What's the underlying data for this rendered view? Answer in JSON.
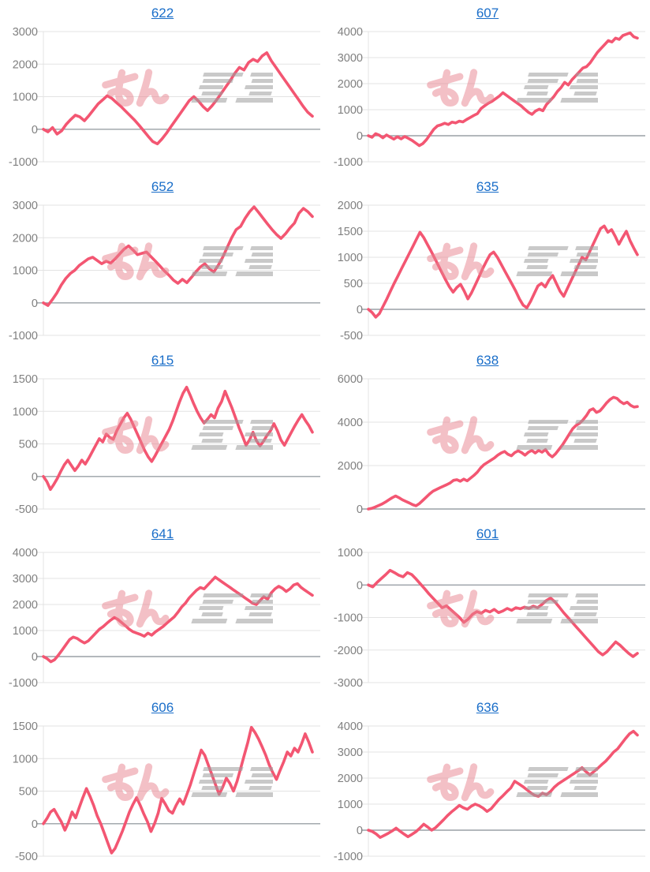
{
  "page": {
    "background": "#ffffff"
  },
  "style": {
    "series_color": "#f35672",
    "grid_color": "#e3e3e3",
    "zero_line_color": "#9aa0a6",
    "tick_label_color": "#808080",
    "title_link_color": "#1a6ec9",
    "watermark_pink": "#e9828e",
    "watermark_gray": "#9e9e9e"
  },
  "watermark": {
    "text": "みんレポ",
    "text_pink": "みん",
    "text_gray": "レポ"
  },
  "chart_data": [
    {
      "type": "line",
      "title": "622",
      "legend": "none",
      "grid": true,
      "y_ticks": [
        3000,
        2000,
        1000,
        0,
        -1000
      ],
      "ylim": [
        -1000,
        3000
      ],
      "values": [
        0,
        -80,
        50,
        -150,
        -50,
        150,
        300,
        430,
        380,
        260,
        420,
        600,
        780,
        900,
        1030,
        950,
        820,
        700,
        560,
        420,
        280,
        120,
        -50,
        -220,
        -380,
        -450,
        -300,
        -120,
        80,
        280,
        480,
        680,
        880,
        1000,
        870,
        700,
        570,
        720,
        900,
        1100,
        1300,
        1500,
        1720,
        1900,
        1820,
        2050,
        2150,
        2080,
        2250,
        2350,
        2100,
        1900,
        1700,
        1500,
        1300,
        1100,
        900,
        700,
        520,
        400
      ]
    },
    {
      "type": "line",
      "title": "607",
      "legend": "none",
      "grid": true,
      "y_ticks": [
        4000,
        3000,
        2000,
        1000,
        0,
        -1000
      ],
      "ylim": [
        -1000,
        4000
      ],
      "values": [
        0,
        -60,
        80,
        20,
        -80,
        30,
        -50,
        -130,
        -40,
        -120,
        -30,
        -100,
        -180,
        -280,
        -380,
        -300,
        -150,
        50,
        250,
        380,
        420,
        480,
        430,
        520,
        490,
        560,
        530,
        620,
        700,
        780,
        850,
        1050,
        1150,
        1250,
        1320,
        1420,
        1520,
        1650,
        1550,
        1450,
        1350,
        1250,
        1150,
        1020,
        900,
        820,
        950,
        1020,
        960,
        1200,
        1350,
        1500,
        1700,
        1850,
        2050,
        1950,
        2150,
        2300,
        2450,
        2600,
        2650,
        2800,
        3000,
        3200,
        3350,
        3500,
        3650,
        3600,
        3750,
        3700,
        3850,
        3900,
        3950,
        3800,
        3750
      ]
    },
    {
      "type": "line",
      "title": "652",
      "legend": "none",
      "grid": true,
      "y_ticks": [
        3000,
        2000,
        1000,
        0,
        -1000
      ],
      "ylim": [
        -1000,
        3000
      ],
      "values": [
        0,
        -80,
        100,
        300,
        550,
        750,
        900,
        1000,
        1150,
        1250,
        1350,
        1400,
        1300,
        1200,
        1280,
        1220,
        1350,
        1500,
        1650,
        1750,
        1620,
        1480,
        1520,
        1560,
        1420,
        1280,
        1130,
        980,
        850,
        700,
        600,
        720,
        620,
        780,
        950,
        1100,
        1200,
        1050,
        950,
        1150,
        1400,
        1700,
        2000,
        2250,
        2350,
        2600,
        2800,
        2950,
        2780,
        2600,
        2420,
        2250,
        2100,
        1980,
        2120,
        2300,
        2450,
        2750,
        2900,
        2800,
        2650
      ]
    },
    {
      "type": "line",
      "title": "635",
      "legend": "none",
      "grid": true,
      "y_ticks": [
        2000,
        1500,
        1000,
        500,
        0,
        -500
      ],
      "ylim": [
        -500,
        2000
      ],
      "values": [
        0,
        -60,
        -150,
        -80,
        60,
        200,
        350,
        500,
        640,
        780,
        920,
        1060,
        1200,
        1340,
        1480,
        1380,
        1250,
        1120,
        980,
        840,
        700,
        560,
        430,
        330,
        420,
        480,
        350,
        200,
        320,
        470,
        620,
        780,
        920,
        1050,
        1100,
        1000,
        870,
        740,
        610,
        480,
        350,
        200,
        80,
        30,
        150,
        300,
        450,
        500,
        430,
        560,
        650,
        500,
        350,
        250,
        400,
        550,
        700,
        850,
        1000,
        950,
        1100,
        1250,
        1400,
        1550,
        1600,
        1480,
        1530,
        1400,
        1250,
        1380,
        1500,
        1320,
        1180,
        1050
      ]
    },
    {
      "type": "line",
      "title": "615",
      "legend": "none",
      "grid": true,
      "y_ticks": [
        1500,
        1000,
        500,
        0,
        -500
      ],
      "ylim": [
        -500,
        1500
      ],
      "values": [
        0,
        -80,
        -200,
        -120,
        -30,
        80,
        180,
        250,
        170,
        90,
        160,
        250,
        190,
        280,
        380,
        480,
        580,
        530,
        650,
        600,
        570,
        700,
        800,
        900,
        970,
        880,
        760,
        640,
        520,
        400,
        300,
        230,
        320,
        420,
        520,
        620,
        720,
        850,
        1000,
        1150,
        1280,
        1370,
        1250,
        1120,
        1000,
        900,
        820,
        880,
        950,
        900,
        1050,
        1150,
        1310,
        1180,
        1050,
        900,
        750,
        620,
        480,
        560,
        680,
        550,
        470,
        540,
        630,
        700,
        810,
        700,
        560,
        480,
        580,
        680,
        780,
        870,
        950,
        860,
        780,
        680
      ]
    },
    {
      "type": "line",
      "title": "638",
      "legend": "none",
      "grid": true,
      "y_ticks": [
        6000,
        4000,
        2000,
        0
      ],
      "ylim": [
        0,
        6000
      ],
      "values": [
        0,
        30,
        90,
        160,
        230,
        320,
        420,
        520,
        600,
        520,
        420,
        350,
        280,
        200,
        150,
        250,
        400,
        550,
        700,
        820,
        900,
        980,
        1050,
        1120,
        1200,
        1320,
        1350,
        1280,
        1380,
        1300,
        1420,
        1550,
        1700,
        1900,
        2050,
        2150,
        2250,
        2350,
        2480,
        2580,
        2650,
        2520,
        2450,
        2600,
        2680,
        2600,
        2480,
        2620,
        2700,
        2580,
        2700,
        2620,
        2740,
        2520,
        2400,
        2550,
        2750,
        2950,
        3200,
        3450,
        3700,
        3850,
        3950,
        4100,
        4300,
        4550,
        4620,
        4450,
        4520,
        4700,
        4900,
        5050,
        5150,
        5100,
        4950,
        4850,
        4920,
        4780,
        4700,
        4720
      ]
    },
    {
      "type": "line",
      "title": "641",
      "legend": "none",
      "grid": true,
      "y_ticks": [
        4000,
        3000,
        2000,
        1000,
        0,
        -1000
      ],
      "ylim": [
        -1000,
        4000
      ],
      "values": [
        0,
        -80,
        -200,
        -120,
        50,
        250,
        450,
        650,
        750,
        700,
        600,
        520,
        600,
        750,
        900,
        1050,
        1150,
        1280,
        1400,
        1500,
        1420,
        1300,
        1180,
        1050,
        950,
        900,
        850,
        780,
        900,
        820,
        950,
        1050,
        1150,
        1280,
        1400,
        1520,
        1700,
        1900,
        2050,
        2250,
        2400,
        2550,
        2650,
        2600,
        2750,
        2900,
        3050,
        2950,
        2850,
        2750,
        2650,
        2550,
        2450,
        2350,
        2250,
        2150,
        2050,
        2000,
        2150,
        2300,
        2200,
        2450,
        2600,
        2700,
        2620,
        2500,
        2600,
        2750,
        2800,
        2650,
        2550,
        2450,
        2350
      ]
    },
    {
      "type": "line",
      "title": "601",
      "legend": "none",
      "grid": true,
      "y_ticks": [
        1000,
        0,
        -1000,
        -2000,
        -3000
      ],
      "ylim": [
        -3000,
        1000
      ],
      "values": [
        0,
        -60,
        80,
        200,
        320,
        450,
        380,
        300,
        250,
        380,
        320,
        180,
        30,
        -120,
        -280,
        -420,
        -560,
        -700,
        -640,
        -760,
        -880,
        -1000,
        -1150,
        -1050,
        -900,
        -820,
        -870,
        -780,
        -830,
        -750,
        -850,
        -800,
        -720,
        -780,
        -700,
        -730,
        -680,
        -720,
        -650,
        -700,
        -600,
        -480,
        -400,
        -520,
        -680,
        -850,
        -1000,
        -1150,
        -1300,
        -1450,
        -1600,
        -1750,
        -1900,
        -2050,
        -2150,
        -2050,
        -1900,
        -1750,
        -1850,
        -1980,
        -2100,
        -2200,
        -2100
      ]
    },
    {
      "type": "line",
      "title": "606",
      "legend": "none",
      "grid": true,
      "y_ticks": [
        1500,
        1000,
        500,
        0,
        -500
      ],
      "ylim": [
        -500,
        1500
      ],
      "values": [
        0,
        80,
        180,
        220,
        120,
        30,
        -100,
        20,
        180,
        90,
        250,
        400,
        540,
        420,
        280,
        120,
        0,
        -150,
        -300,
        -450,
        -380,
        -250,
        -120,
        30,
        180,
        300,
        400,
        280,
        150,
        30,
        -120,
        0,
        160,
        390,
        300,
        200,
        160,
        280,
        380,
        300,
        450,
        600,
        780,
        950,
        1130,
        1050,
        900,
        750,
        600,
        450,
        560,
        700,
        620,
        500,
        650,
        850,
        1050,
        1250,
        1480,
        1400,
        1300,
        1180,
        1050,
        900,
        780,
        680,
        820,
        950,
        1100,
        1040,
        1160,
        1100,
        1230,
        1380,
        1250,
        1100
      ]
    },
    {
      "type": "line",
      "title": "636",
      "legend": "none",
      "grid": true,
      "y_ticks": [
        4000,
        3000,
        2000,
        1000,
        0,
        -1000
      ],
      "ylim": [
        -1000,
        4000
      ],
      "values": [
        0,
        -50,
        -150,
        -280,
        -200,
        -120,
        -30,
        80,
        -40,
        -150,
        -250,
        -160,
        -60,
        80,
        230,
        120,
        0,
        100,
        250,
        400,
        560,
        700,
        820,
        950,
        860,
        800,
        920,
        1000,
        940,
        850,
        720,
        820,
        1000,
        1180,
        1320,
        1480,
        1620,
        1880,
        1780,
        1680,
        1560,
        1440,
        1340,
        1300,
        1420,
        1360,
        1480,
        1650,
        1780,
        1880,
        1980,
        2080,
        2180,
        2280,
        2400,
        2250,
        2120,
        2250,
        2380,
        2520,
        2650,
        2820,
        3000,
        3120,
        3320,
        3520,
        3700,
        3800,
        3650
      ]
    }
  ]
}
